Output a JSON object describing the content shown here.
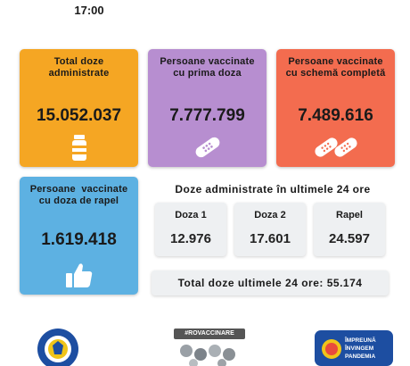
{
  "header": {
    "time": "17:00"
  },
  "cards": {
    "total_doses": {
      "title_line1": "Total doze",
      "title_line2": "administrate",
      "value": "15.052.037"
    },
    "first_dose": {
      "title_line1": "Persoane vaccinate",
      "title_line2": "cu prima doza",
      "value": "7.777.799"
    },
    "full_schema": {
      "title_line1": "Persoane vaccinate",
      "title_line2": "cu schemă completă",
      "value": "7.489.616"
    },
    "booster": {
      "title_line1": "Persoane  vaccinate",
      "title_line2": "cu doza de rapel",
      "value": "1.619.418"
    }
  },
  "last24": {
    "heading": "Doze administrate în ultimele 24 ore",
    "items": [
      {
        "label": "Doza 1",
        "value": "12.976"
      },
      {
        "label": "Doza 2",
        "value": "17.601"
      },
      {
        "label": "Rapel",
        "value": "24.597"
      }
    ],
    "total_label": "Total doze ultimele 24 ore:",
    "total_value": "55.174"
  },
  "footer": {
    "hashtag": "#ROVACCINARE",
    "right_logo_line1": "ÎMPREUNĂ",
    "right_logo_line2": "ÎNVINGEM",
    "right_logo_line3": "PANDEMIA"
  },
  "colors": {
    "orange": "#f5a623",
    "purple": "#b78ed0",
    "coral": "#f36c4f",
    "blue": "#5db1e2",
    "panel": "#eef0f2",
    "navy": "#1d4ea1"
  }
}
